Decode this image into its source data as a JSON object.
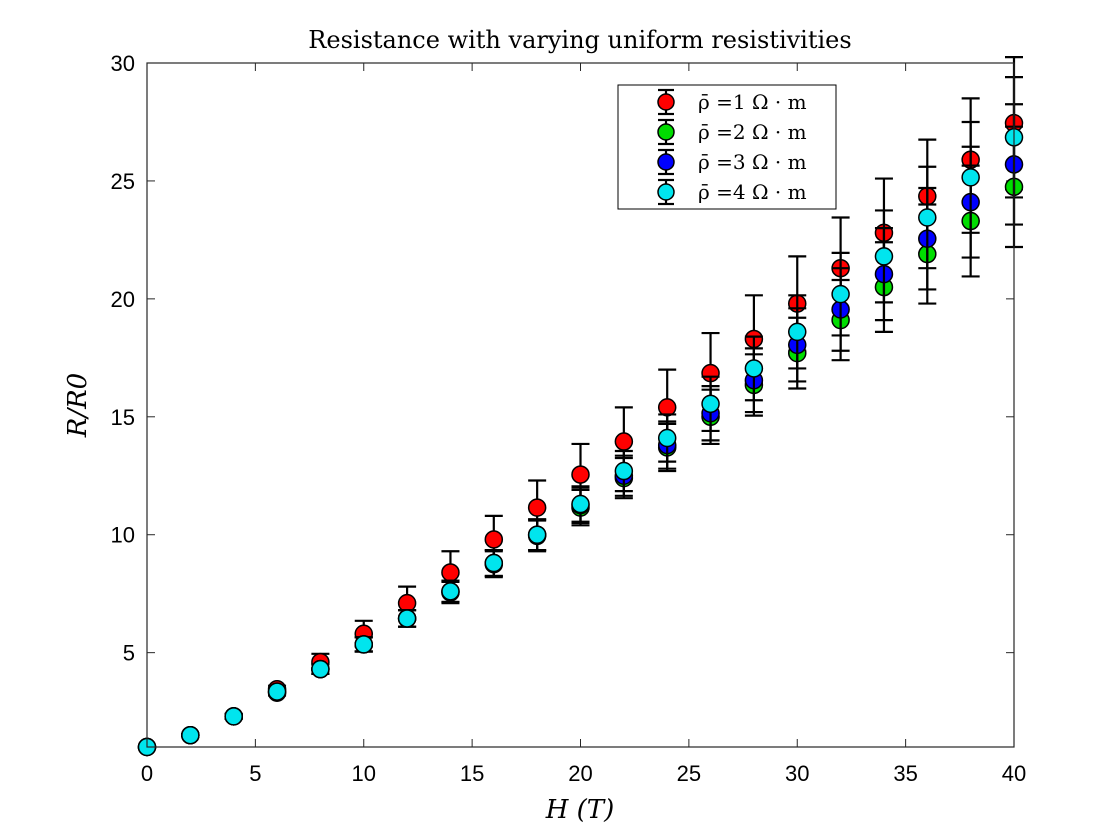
{
  "chart_data": {
    "type": "scatter",
    "title": "Resistance with varying uniform resistivities",
    "xlabel": "H (T)",
    "ylabel": "R/R0",
    "xlim": [
      0,
      40
    ],
    "ylim": [
      1,
      30
    ],
    "xticks": [
      0,
      5,
      10,
      15,
      20,
      25,
      30,
      35,
      40
    ],
    "yticks": [
      5,
      10,
      15,
      20,
      25,
      30
    ],
    "legend_position": "top-right",
    "x": [
      0,
      2,
      4,
      6,
      8,
      10,
      12,
      14,
      16,
      18,
      20,
      22,
      24,
      26,
      28,
      30,
      32,
      34,
      36,
      38,
      40
    ],
    "series": [
      {
        "name": "ρ̄ =1 Ω · m",
        "color": "#ff0000",
        "values": [
          1.0,
          1.5,
          2.3,
          3.45,
          4.6,
          5.8,
          7.1,
          8.4,
          9.8,
          11.15,
          12.55,
          13.95,
          15.4,
          16.85,
          18.3,
          19.8,
          21.3,
          22.8,
          24.35,
          25.9,
          27.45
        ],
        "errors": [
          0.0,
          0.05,
          0.1,
          0.15,
          0.35,
          0.55,
          0.7,
          0.9,
          1.0,
          1.15,
          1.3,
          1.45,
          1.6,
          1.7,
          1.85,
          2.0,
          2.15,
          2.3,
          2.4,
          2.6,
          2.8
        ]
      },
      {
        "name": "ρ̄ =2 Ω · m",
        "color": "#00dd00",
        "values": [
          1.0,
          1.5,
          2.3,
          3.3,
          4.3,
          5.35,
          6.45,
          7.55,
          8.75,
          9.95,
          11.15,
          12.4,
          13.7,
          15.0,
          16.35,
          17.7,
          19.1,
          20.5,
          21.9,
          23.3,
          24.75
        ],
        "errors": [
          0.0,
          0.05,
          0.1,
          0.12,
          0.2,
          0.3,
          0.35,
          0.45,
          0.55,
          0.65,
          0.75,
          0.85,
          1.0,
          1.15,
          1.3,
          1.5,
          1.7,
          1.9,
          2.1,
          2.35,
          2.55
        ]
      },
      {
        "name": "ρ̄ =3 Ω · m",
        "color": "#0000ff",
        "values": [
          1.0,
          1.5,
          2.3,
          3.35,
          4.3,
          5.35,
          6.45,
          7.6,
          8.8,
          10.0,
          11.25,
          12.5,
          13.8,
          15.15,
          16.55,
          18.05,
          19.55,
          21.05,
          22.55,
          24.1,
          25.7
        ],
        "errors": [
          0.0,
          0.05,
          0.1,
          0.12,
          0.2,
          0.3,
          0.35,
          0.45,
          0.55,
          0.65,
          0.75,
          0.85,
          1.0,
          1.15,
          1.35,
          1.55,
          1.75,
          1.95,
          2.15,
          2.35,
          2.55
        ]
      },
      {
        "name": "ρ̄ =4 Ω · m",
        "color": "#00e5ee",
        "values": [
          1.0,
          1.5,
          2.3,
          3.35,
          4.3,
          5.35,
          6.45,
          7.6,
          8.8,
          10.0,
          11.3,
          12.7,
          14.1,
          15.55,
          17.05,
          18.6,
          20.2,
          21.8,
          23.45,
          25.15,
          26.85
        ],
        "errors": [
          0.0,
          0.05,
          0.1,
          0.12,
          0.2,
          0.3,
          0.35,
          0.45,
          0.55,
          0.65,
          0.75,
          0.85,
          1.0,
          1.15,
          1.35,
          1.55,
          1.75,
          1.95,
          2.15,
          2.35,
          2.55
        ]
      }
    ]
  }
}
